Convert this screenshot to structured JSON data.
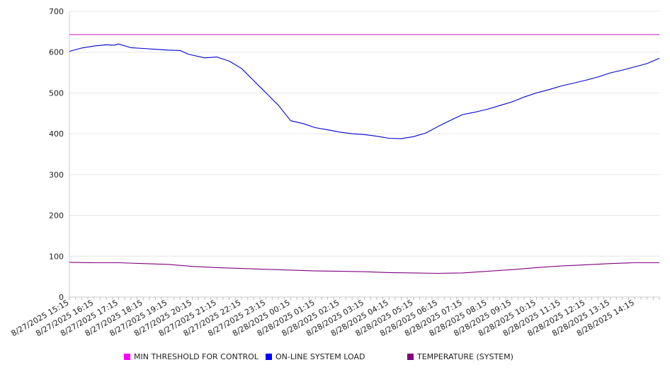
{
  "chart_data": {
    "type": "line",
    "title": "",
    "xlabel": "",
    "ylabel": "",
    "ylim": [
      0,
      700
    ],
    "yticks": [
      0,
      100,
      200,
      300,
      400,
      500,
      600,
      700
    ],
    "grid": true,
    "legend_position": "bottom",
    "x_tick_labels": [
      "8/27/2025 15:15",
      "8/27/2025 16:15",
      "8/27/2025 17:15",
      "8/27/2025 18:15",
      "8/27/2025 19:15",
      "8/27/2025 20:15",
      "8/27/2025 21:15",
      "8/27/2025 22:15",
      "8/27/2025 23:15",
      "8/28/2025 00:15",
      "8/28/2025 01:15",
      "8/28/2025 02:15",
      "8/28/2025 03:15",
      "8/28/2025 04:15",
      "8/28/2025 05:15",
      "8/28/2025 06:15",
      "8/28/2025 07:15",
      "8/28/2025 08:15",
      "8/28/2025 09:15",
      "8/28/2025 10:15",
      "8/28/2025 11:15",
      "8/28/2025 12:15",
      "8/28/2025 13:15",
      "8/28/2025 14:15"
    ],
    "x_range": [
      "8/27/2025 15:15",
      "8/28/2025 15:15"
    ],
    "series": [
      {
        "name": "MIN THRESHOLD FOR CONTROL",
        "color": "#cc33cc",
        "legend_color": "#ff00ff",
        "x": [
          "8/27/2025 15:15",
          "8/28/2025 15:15"
        ],
        "values": [
          643,
          643
        ]
      },
      {
        "name": "ON-LINE SYSTEM LOAD",
        "color": "#0000cc",
        "legend_color": "#0000ff",
        "x": [
          "8/27/2025 15:15",
          "8/27/2025 15:45",
          "8/27/2025 16:15",
          "8/27/2025 16:45",
          "8/27/2025 17:05",
          "8/27/2025 17:15",
          "8/27/2025 17:45",
          "8/27/2025 18:15",
          "8/27/2025 18:45",
          "8/27/2025 19:15",
          "8/27/2025 19:45",
          "8/27/2025 20:05",
          "8/27/2025 20:45",
          "8/27/2025 21:15",
          "8/27/2025 21:45",
          "8/27/2025 22:15",
          "8/27/2025 22:45",
          "8/27/2025 23:05",
          "8/27/2025 23:15",
          "8/27/2025 23:35",
          "8/27/2025 23:45",
          "8/28/2025 00:15",
          "8/28/2025 00:45",
          "8/28/2025 01:15",
          "8/28/2025 01:45",
          "8/28/2025 02:15",
          "8/28/2025 02:45",
          "8/28/2025 03:15",
          "8/28/2025 03:45",
          "8/28/2025 04:15",
          "8/28/2025 04:45",
          "8/28/2025 05:15",
          "8/28/2025 05:45",
          "8/28/2025 06:15",
          "8/28/2025 06:45",
          "8/28/2025 07:15",
          "8/28/2025 07:45",
          "8/28/2025 08:15",
          "8/28/2025 08:45",
          "8/28/2025 09:15",
          "8/28/2025 09:45",
          "8/28/2025 10:15",
          "8/28/2025 10:45",
          "8/28/2025 11:15",
          "8/28/2025 11:45",
          "8/28/2025 12:15",
          "8/28/2025 12:45",
          "8/28/2025 13:15",
          "8/28/2025 13:45",
          "8/28/2025 14:15",
          "8/28/2025 14:45",
          "8/28/2025 15:15"
        ],
        "values": [
          602,
          610,
          615,
          618,
          617,
          620,
          611,
          609,
          607,
          605,
          604,
          595,
          586,
          588,
          578,
          560,
          530,
          510,
          500,
          480,
          470,
          432,
          425,
          415,
          410,
          404,
          400,
          398,
          394,
          389,
          388,
          393,
          402,
          418,
          433,
          447,
          453,
          460,
          469,
          478,
          490,
          500,
          508,
          517,
          524,
          531,
          539,
          549,
          556,
          564,
          572,
          585
        ]
      },
      {
        "name": "TEMPERATURE (SYSTEM)",
        "color": "#800080",
        "legend_color": "#800080",
        "x": [
          "8/27/2025 15:15",
          "8/27/2025 16:15",
          "8/27/2025 17:15",
          "8/27/2025 18:15",
          "8/27/2025 19:15",
          "8/27/2025 20:15",
          "8/27/2025 21:15",
          "8/27/2025 22:15",
          "8/27/2025 23:15",
          "8/28/2025 00:15",
          "8/28/2025 01:15",
          "8/28/2025 02:15",
          "8/28/2025 03:15",
          "8/28/2025 04:15",
          "8/28/2025 05:15",
          "8/28/2025 06:15",
          "8/28/2025 07:15",
          "8/28/2025 08:15",
          "8/28/2025 09:15",
          "8/28/2025 10:15",
          "8/28/2025 11:15",
          "8/28/2025 12:15",
          "8/28/2025 13:15",
          "8/28/2025 14:15",
          "8/28/2025 15:15"
        ],
        "values": [
          85,
          84,
          84,
          82,
          80,
          75,
          72,
          70,
          68,
          66,
          64,
          63,
          62,
          60,
          59,
          58,
          59,
          63,
          67,
          72,
          76,
          79,
          82,
          84,
          84
        ]
      }
    ]
  }
}
